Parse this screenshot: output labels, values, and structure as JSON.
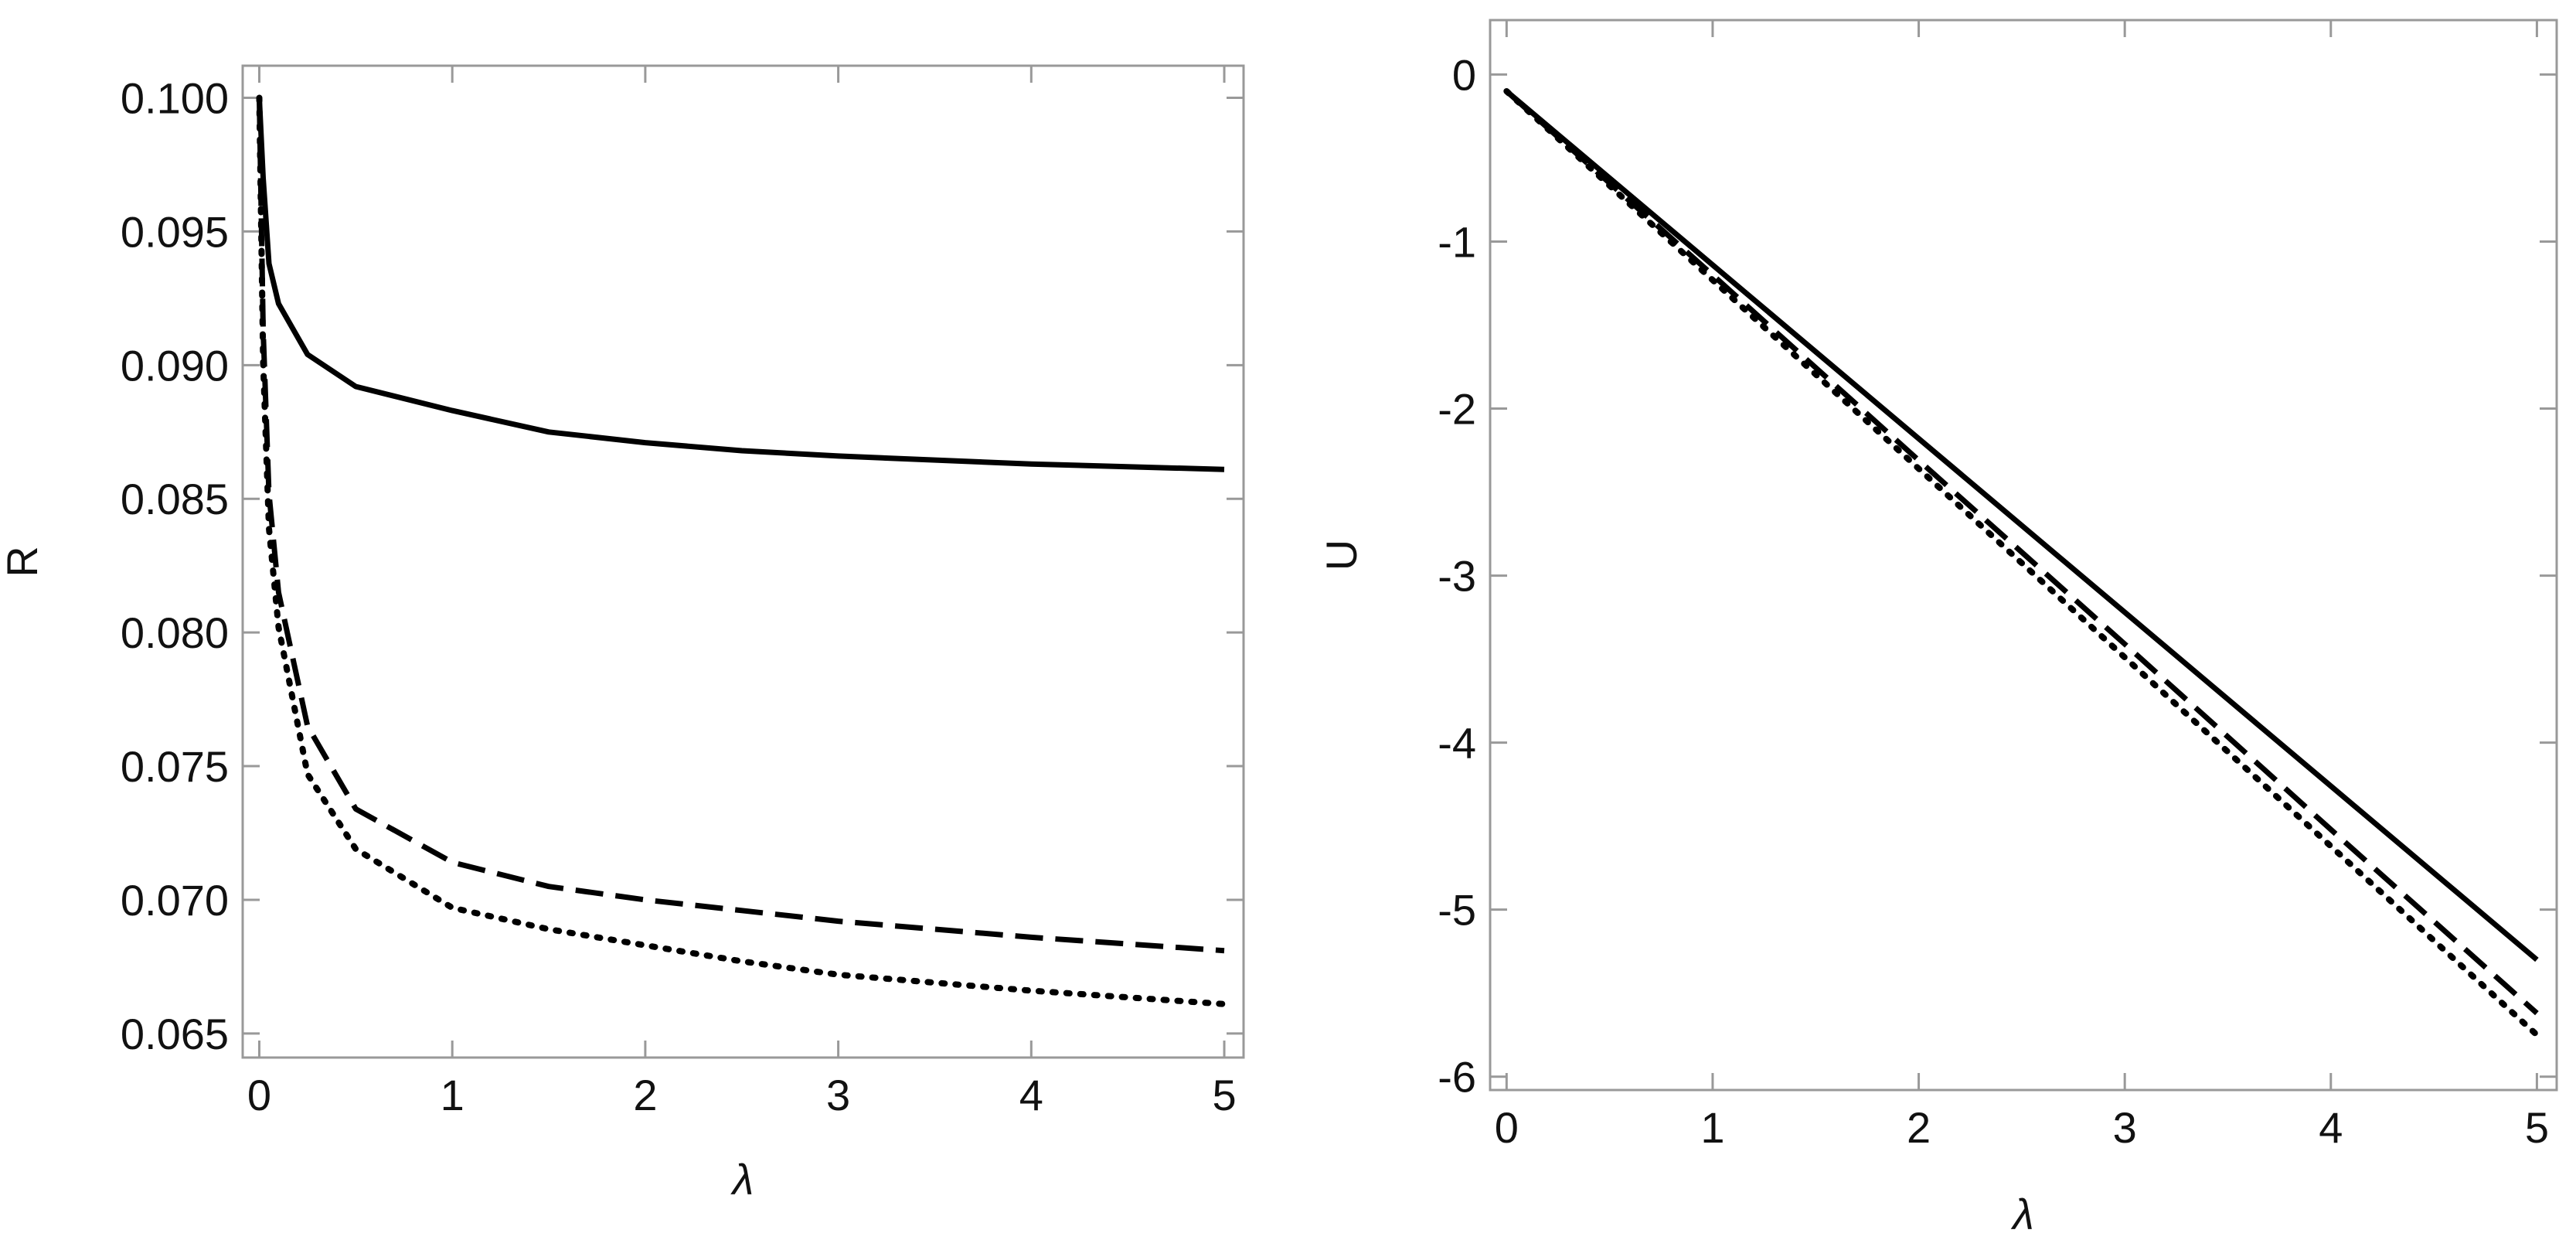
{
  "chart_data": [
    {
      "type": "line",
      "x_label": "λ",
      "y_label": "R",
      "x": [
        0,
        0.02,
        0.05,
        0.1,
        0.25,
        0.5,
        1,
        1.5,
        2,
        2.5,
        3,
        4,
        5
      ],
      "xlim": [
        -0.086,
        5.1
      ],
      "xticks": [
        0,
        1,
        2,
        3,
        4,
        5
      ],
      "ylim": [
        0.0641,
        0.1012
      ],
      "yticks": [
        0.065,
        {
          "value": 0.07,
          "label": "0.070"
        },
        0.075,
        {
          "value": 0.08,
          "label": "0.080"
        },
        0.085,
        {
          "value": 0.09,
          "label": "0.090"
        },
        0.095,
        {
          "value": 0.1,
          "label": "0.100"
        }
      ],
      "frame": true,
      "series": [
        {
          "color": "#000000",
          "style": "solid",
          "values": [
            0.1,
            0.097,
            0.0938,
            0.0923,
            0.0904,
            0.0892,
            0.0883,
            0.0875,
            0.0871,
            0.0868,
            0.0866,
            0.0863,
            0.0861
          ]
        },
        {
          "color": "#000000",
          "style": "dashed",
          "values": [
            0.1,
            0.0913,
            0.0852,
            0.0815,
            0.0765,
            0.0734,
            0.0714,
            0.0705,
            0.07,
            0.0696,
            0.0692,
            0.0686,
            0.0681
          ]
        },
        {
          "color": "#000000",
          "style": "dotted",
          "values": [
            0.1,
            0.0901,
            0.0839,
            0.0802,
            0.0747,
            0.0719,
            0.0697,
            0.0689,
            0.0683,
            0.0677,
            0.0672,
            0.0666,
            0.0661
          ]
        }
      ]
    },
    {
      "type": "line",
      "x_label": "λ",
      "y_label": "U",
      "x": [
        0,
        1,
        2,
        3,
        4,
        5
      ],
      "xlim": [
        -0.08,
        5.096
      ],
      "xticks": [
        0,
        1,
        2,
        3,
        4,
        5
      ],
      "ylim": [
        -6.08,
        0.326
      ],
      "yticks": [
        -6,
        -5,
        -4,
        -3,
        -2,
        -1,
        0
      ],
      "frame": true,
      "series": [
        {
          "color": "#000000",
          "style": "solid",
          "values": [
            -0.1,
            -1.14,
            -2.18,
            -3.22,
            -4.26,
            -5.3
          ]
        },
        {
          "color": "#000000",
          "style": "dashed",
          "values": [
            -0.1,
            -1.2,
            -2.31,
            -3.41,
            -4.52,
            -5.62
          ]
        },
        {
          "color": "#000000",
          "style": "dotted",
          "values": [
            -0.1,
            -1.23,
            -2.36,
            -3.49,
            -4.62,
            -5.75
          ]
        }
      ]
    }
  ]
}
